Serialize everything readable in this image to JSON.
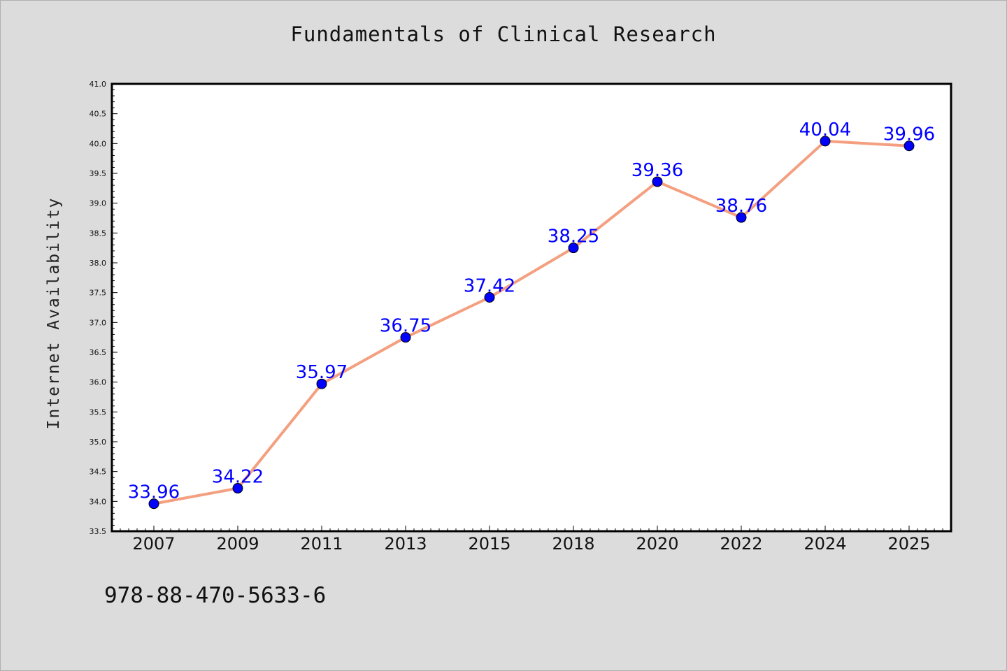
{
  "chart_data": {
    "type": "line",
    "title": "Fundamentals of Clinical Research",
    "xlabel": "",
    "ylabel": "Internet Availability",
    "categories": [
      "2007",
      "2009",
      "2011",
      "2013",
      "2015",
      "2018",
      "2020",
      "2022",
      "2024",
      "2025"
    ],
    "series": [
      {
        "values": [
          33.96,
          34.22,
          35.97,
          36.75,
          37.42,
          38.25,
          39.36,
          38.76,
          40.04,
          39.96
        ],
        "data_labels": [
          "33.96",
          "34.22",
          "35.97",
          "36.75",
          "37.42",
          "38.25",
          "39.36",
          "38.76",
          "40.04",
          "39.96"
        ]
      }
    ],
    "ylim": [
      33.5,
      41.0
    ],
    "y_ticks": [
      "33.5",
      "34.0",
      "34.5",
      "35.0",
      "35.5",
      "36.0",
      "36.5",
      "37.0",
      "37.5",
      "38.0",
      "38.5",
      "39.0",
      "39.5",
      "40.0",
      "40.5",
      "41.0"
    ],
    "grid": false,
    "colors": {
      "line": "#f4a080",
      "marker": "#0000ff",
      "data_label": "#0000ff",
      "plot_background": "#ffffff",
      "page_background": "#dcdcdc"
    }
  },
  "footer_text": "978-88-470-5633-6"
}
